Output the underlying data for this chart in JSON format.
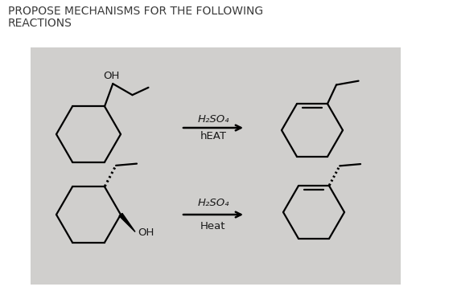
{
  "title_line1": "PROPOSE MECHANISMS FOR THE FOLLOWING",
  "title_line2": "REACTIONS",
  "title_fontsize": 10.0,
  "title_color": "#3a3a3a",
  "bg_color": "#ffffff",
  "panel_color": "#d0cfcd",
  "arrow1_label_top": "H₂SO₄",
  "arrow1_label_bottom": "hEAT",
  "arrow2_label_top": "H₂SO₄",
  "arrow2_label_bottom": "Heat",
  "lw": 1.6,
  "text_color": "#1a1a1a"
}
